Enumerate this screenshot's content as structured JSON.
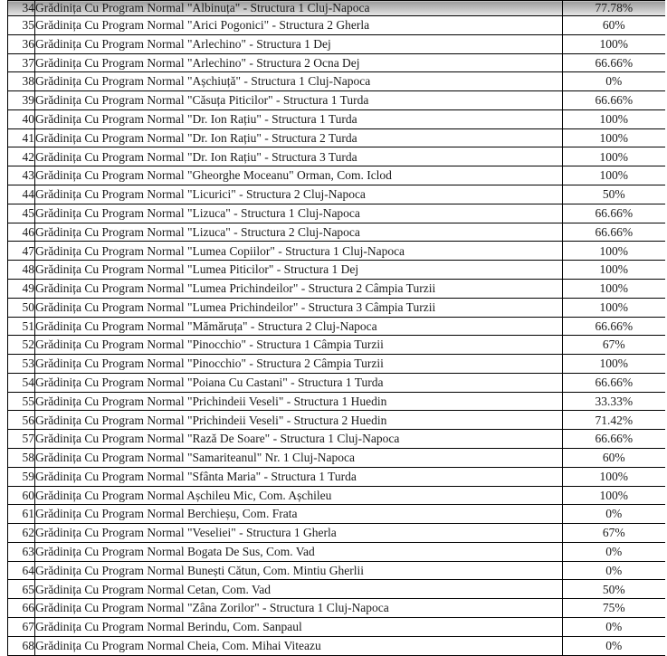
{
  "table": {
    "description": "List of kindergartens with pass-rate percentages, rows 34-68",
    "highlighted_row_no": "34",
    "columns": {
      "no": "row-number",
      "name": "school-name",
      "pct": "pass-rate-percent"
    },
    "colors": {
      "border": "#000000",
      "text": "#1a1a1a",
      "highlight_top": "#9b9b9b",
      "highlight_bottom": "#e9e9e9",
      "background": "#ffffff"
    },
    "rows": [
      {
        "no": "34",
        "name": "Grădinița Cu Program Normal \"Albinuța\" - Structura 1 Cluj-Napoca",
        "pct": "77.78%"
      },
      {
        "no": "35",
        "name": "Grădinița Cu Program Normal \"Arici Pogonici\" - Structura 2 Gherla",
        "pct": "60%"
      },
      {
        "no": "36",
        "name": "Grădinița Cu Program Normal \"Arlechino\" - Structura 1 Dej",
        "pct": "100%"
      },
      {
        "no": "37",
        "name": "Grădinița Cu Program Normal \"Arlechino\" - Structura 2 Ocna Dej",
        "pct": "66.66%"
      },
      {
        "no": "38",
        "name": "Grădinița Cu Program Normal \"Așchiuță\" - Structura 1 Cluj-Napoca",
        "pct": "0%"
      },
      {
        "no": "39",
        "name": "Grădinița Cu Program Normal \"Căsuța Piticilor\" - Structura 1 Turda",
        "pct": "66.66%"
      },
      {
        "no": "40",
        "name": "Grădinița Cu Program Normal \"Dr. Ion Rațiu\" - Structura 1 Turda",
        "pct": "100%"
      },
      {
        "no": "41",
        "name": "Grădinița Cu Program Normal \"Dr. Ion Rațiu\" - Structura 2 Turda",
        "pct": "100%"
      },
      {
        "no": "42",
        "name": "Grădinița Cu Program Normal \"Dr. Ion Rațiu\" - Structura 3 Turda",
        "pct": "100%"
      },
      {
        "no": "43",
        "name": "Grădinița Cu Program Normal \"Gheorghe Moceanu\" Orman, Com. Iclod",
        "pct": "100%"
      },
      {
        "no": "44",
        "name": "Grădinița Cu Program Normal \"Licurici\" - Structura 2 Cluj-Napoca",
        "pct": "50%"
      },
      {
        "no": "45",
        "name": "Grădinița Cu Program Normal \"Lizuca\" - Structura 1 Cluj-Napoca",
        "pct": "66.66%"
      },
      {
        "no": "46",
        "name": "Grădinița Cu Program Normal \"Lizuca\" - Structura 2 Cluj-Napoca",
        "pct": "66.66%"
      },
      {
        "no": "47",
        "name": "Grădinița Cu Program Normal \"Lumea Copiilor\" - Structura 1 Cluj-Napoca",
        "pct": "100%"
      },
      {
        "no": "48",
        "name": "Grădinița Cu Program Normal \"Lumea Piticilor\" - Structura 1 Dej",
        "pct": "100%"
      },
      {
        "no": "49",
        "name": "Grădinița Cu Program Normal \"Lumea Prichindeilor\" - Structura 2 Câmpia Turzii",
        "pct": "100%"
      },
      {
        "no": "50",
        "name": "Grădinița Cu Program Normal \"Lumea Prichindeilor\" - Structura 3 Câmpia Turzii",
        "pct": "100%"
      },
      {
        "no": "51",
        "name": "Grădinița Cu Program Normal \"Mămăruța\" - Structura 2 Cluj-Napoca",
        "pct": "66.66%"
      },
      {
        "no": "52",
        "name": "Grădinița Cu Program Normal \"Pinocchio\" - Structura 1 Câmpia Turzii",
        "pct": "67%"
      },
      {
        "no": "53",
        "name": "Grădinița Cu Program Normal \"Pinocchio\" - Structura 2 Câmpia Turzii",
        "pct": "100%"
      },
      {
        "no": "54",
        "name": "Grădinița Cu Program Normal \"Poiana Cu Castani\" - Structura 1 Turda",
        "pct": "66.66%"
      },
      {
        "no": "55",
        "name": "Grădinița Cu Program Normal \"Prichindeii Veseli\" - Structura 1 Huedin",
        "pct": "33.33%"
      },
      {
        "no": "56",
        "name": "Grădinița Cu Program Normal \"Prichindeii Veseli\" - Structura 2 Huedin",
        "pct": "71.42%"
      },
      {
        "no": "57",
        "name": "Grădinița Cu Program Normal \"Rază De Soare\" - Structura 1 Cluj-Napoca",
        "pct": "66.66%"
      },
      {
        "no": "58",
        "name": "Grădinița Cu Program Normal \"Samariteanul\" Nr. 1 Cluj-Napoca",
        "pct": "60%"
      },
      {
        "no": "59",
        "name": "Grădinița Cu Program Normal \"Sfânta Maria\" - Structura 1 Turda",
        "pct": "100%"
      },
      {
        "no": "60",
        "name": "Grădinița Cu Program Normal Așchileu Mic, Com. Așchileu",
        "pct": "100%"
      },
      {
        "no": "61",
        "name": "Grădinița Cu Program Normal Berchieșu, Com. Frata",
        "pct": "0%"
      },
      {
        "no": "62",
        "name": "Grădinița Cu Program Normal \"Veseliei\" - Structura 1 Gherla",
        "pct": "67%"
      },
      {
        "no": "63",
        "name": "Grădinița Cu Program Normal Bogata De Sus, Com. Vad",
        "pct": "0%"
      },
      {
        "no": "64",
        "name": "Grădinița Cu Program Normal Bunești Cătun, Com. Mintiu Gherlii",
        "pct": "0%"
      },
      {
        "no": "65",
        "name": "Grădinița Cu Program Normal Cetan, Com. Vad",
        "pct": "50%"
      },
      {
        "no": "66",
        "name": "Grădinița Cu Program Normal \"Zâna Zorilor\" - Structura 1 Cluj-Napoca",
        "pct": "75%"
      },
      {
        "no": "67",
        "name": "Grădinița Cu Program Normal Berindu, Com. Sanpaul",
        "pct": "0%"
      },
      {
        "no": "68",
        "name": "Grădinița Cu Program Normal Cheia, Com. Mihai Viteazu",
        "pct": "0%"
      }
    ]
  }
}
